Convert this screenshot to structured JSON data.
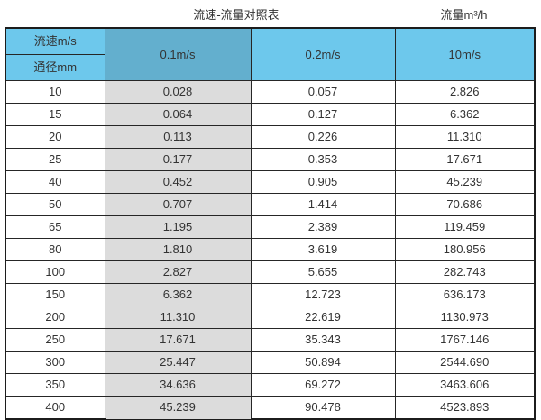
{
  "chart_data": {
    "type": "table",
    "title": "流速-流量对照表",
    "flow_unit_label": "流量m³/h",
    "corner": {
      "top": "流速m/s",
      "bottom": "通径mm"
    },
    "velocity_columns": [
      "0.1m/s",
      "0.2m/s",
      "10m/s"
    ],
    "rows": [
      {
        "diameter_mm": "10",
        "flows": [
          "0.028",
          "0.057",
          "2.826"
        ]
      },
      {
        "diameter_mm": "15",
        "flows": [
          "0.064",
          "0.127",
          "6.362"
        ]
      },
      {
        "diameter_mm": "20",
        "flows": [
          "0.113",
          "0.226",
          "11.310"
        ]
      },
      {
        "diameter_mm": "25",
        "flows": [
          "0.177",
          "0.353",
          "17.671"
        ]
      },
      {
        "diameter_mm": "40",
        "flows": [
          "0.452",
          "0.905",
          "45.239"
        ]
      },
      {
        "diameter_mm": "50",
        "flows": [
          "0.707",
          "1.414",
          "70.686"
        ]
      },
      {
        "diameter_mm": "65",
        "flows": [
          "1.195",
          "2.389",
          "119.459"
        ]
      },
      {
        "diameter_mm": "80",
        "flows": [
          "1.810",
          "3.619",
          "180.956"
        ]
      },
      {
        "diameter_mm": "100",
        "flows": [
          "2.827",
          "5.655",
          "282.743"
        ]
      },
      {
        "diameter_mm": "150",
        "flows": [
          "6.362",
          "12.723",
          "636.173"
        ]
      },
      {
        "diameter_mm": "200",
        "flows": [
          "11.310",
          "22.619",
          "1130.973"
        ]
      },
      {
        "diameter_mm": "250",
        "flows": [
          "17.671",
          "35.343",
          "1767.146"
        ]
      },
      {
        "diameter_mm": "300",
        "flows": [
          "25.447",
          "50.894",
          "2544.690"
        ]
      },
      {
        "diameter_mm": "350",
        "flows": [
          "34.636",
          "69.272",
          "3463.606"
        ]
      },
      {
        "diameter_mm": "400",
        "flows": [
          "45.239",
          "90.478",
          "4523.893"
        ]
      }
    ],
    "layout_hints": {
      "highlighted_column": "0.1m/s",
      "grid": "on",
      "legend": "none"
    }
  },
  "colors": {
    "header_cyan": "#6dc8ec",
    "header_dark_blue": "#63afce",
    "highlight_gray": "#dcdcdc",
    "border_black": "#1c1c1c",
    "text": "#333333",
    "background": "#ffffff"
  }
}
